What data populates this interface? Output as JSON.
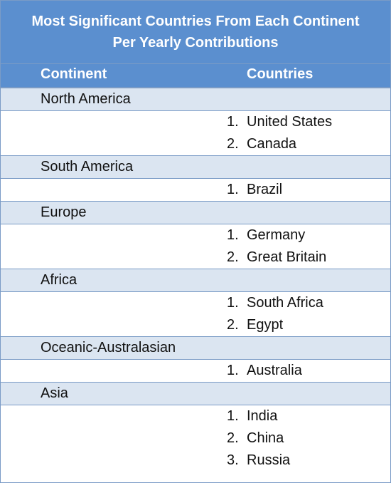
{
  "title": {
    "line1": "Most Significant Countries From Each Continent",
    "line2": "Per Yearly Contributions"
  },
  "headers": {
    "continent": "Continent",
    "countries": "Countries"
  },
  "groups": [
    {
      "continent": "North America",
      "countries": [
        {
          "num": "1.",
          "name": "United States"
        },
        {
          "num": "2.",
          "name": "Canada"
        }
      ]
    },
    {
      "continent": "South America",
      "countries": [
        {
          "num": "1.",
          "name": "Brazil"
        }
      ]
    },
    {
      "continent": "Europe",
      "countries": [
        {
          "num": "1.",
          "name": "Germany"
        },
        {
          "num": "2.",
          "name": "Great Britain"
        }
      ]
    },
    {
      "continent": "Africa",
      "countries": [
        {
          "num": "1.",
          "name": "South Africa"
        },
        {
          "num": "2.",
          "name": "Egypt"
        }
      ]
    },
    {
      "continent": "Oceanic-Australasian",
      "countries": [
        {
          "num": "1.",
          "name": "Australia"
        }
      ]
    },
    {
      "continent": "Asia",
      "countries": [
        {
          "num": "1.",
          "name": "India"
        },
        {
          "num": "2.",
          "name": "China"
        },
        {
          "num": "3.",
          "name": "Russia"
        }
      ]
    }
  ]
}
